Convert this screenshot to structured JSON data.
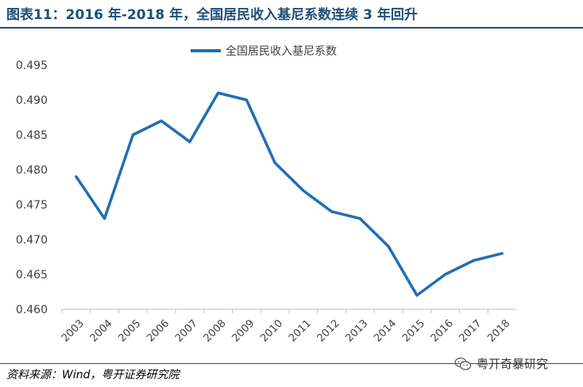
{
  "title": "图表11：2016 年-2018 年，全国居民收入基尼系数连续 3 年回升",
  "source": "资料来源：Wind，粤开证券研究院",
  "watermark": {
    "text": "粤开奇暴研究",
    "icon": "wechat-icon"
  },
  "colors": {
    "title": "#1f4e79",
    "series": "#1f6eb4"
  },
  "chart_data": {
    "type": "line",
    "title": "",
    "xlabel": "",
    "ylabel": "",
    "legend": "top-center",
    "grid": false,
    "x": [
      "2003",
      "2004",
      "2005",
      "2006",
      "2007",
      "2008",
      "2009",
      "2010",
      "2011",
      "2012",
      "2013",
      "2014",
      "2015",
      "2016",
      "2017",
      "2018"
    ],
    "ylim": [
      0.46,
      0.495
    ],
    "yticks": [
      "0.460",
      "0.465",
      "0.470",
      "0.475",
      "0.480",
      "0.485",
      "0.490",
      "0.495"
    ],
    "series": [
      {
        "name": "全国居民收入基尼系数",
        "values": [
          0.479,
          0.473,
          0.485,
          0.487,
          0.484,
          0.491,
          0.49,
          0.481,
          0.477,
          0.474,
          0.473,
          0.469,
          0.462,
          0.465,
          0.467,
          0.468
        ]
      }
    ]
  }
}
